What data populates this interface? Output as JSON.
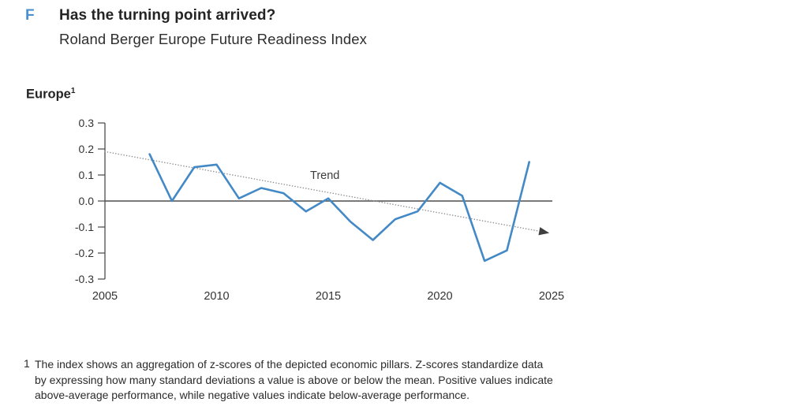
{
  "header": {
    "figure_letter": "F",
    "title": "Has the turning point arrived?",
    "subtitle": "Roland Berger Europe Future Readiness Index"
  },
  "chart": {
    "region_label": "Europe",
    "region_label_sup": "1",
    "trend_label": "Trend",
    "colors": {
      "line": "#4389c6",
      "trend": "#8f8f8f",
      "trend_arrow": "#3f3f3f",
      "axis": "#4d4d4d",
      "figure_letter": "#4a8fce"
    }
  },
  "chart_data": {
    "type": "line",
    "title": "Has the turning point arrived?",
    "subtitle": "Roland Berger Europe Future Readiness Index",
    "series": [
      {
        "name": "Europe",
        "x": [
          2007,
          2008,
          2009,
          2010,
          2011,
          2012,
          2013,
          2014,
          2015,
          2016,
          2017,
          2018,
          2019,
          2020,
          2021,
          2022,
          2023,
          2024
        ],
        "values": [
          0.18,
          0.0,
          0.13,
          0.14,
          0.01,
          0.05,
          0.03,
          -0.04,
          0.01,
          -0.08,
          -0.15,
          -0.07,
          -0.04,
          0.07,
          0.02,
          -0.23,
          -0.19,
          0.15
        ]
      }
    ],
    "trend_line": {
      "label": "Trend",
      "style": "dotted-with-arrowhead",
      "x_start": 2005,
      "y_start": 0.19,
      "x_end": 2024.9,
      "y_end": -0.123
    },
    "x_ticks": [
      "2005",
      "2010",
      "2015",
      "2020",
      "2025"
    ],
    "x_tick_years": [
      2005,
      2010,
      2015,
      2020,
      2025
    ],
    "y_tick_labels": [
      "0.3",
      "0.2",
      "0.1",
      "0.0",
      "-0.1",
      "-0.2",
      "-0.3"
    ],
    "y_tick_values": [
      0.3,
      0.2,
      0.1,
      0.0,
      -0.1,
      -0.2,
      -0.3
    ],
    "xlim": [
      2005,
      2025
    ],
    "ylim": [
      -0.3,
      0.3
    ],
    "grid": false,
    "zero_line": true,
    "legend": "none"
  },
  "footnote": {
    "marker": "1",
    "lines": [
      "The index shows an aggregation of z-scores of the depicted economic pillars. Z-scores standardize data",
      "by expressing how many standard deviations a value is above or below the mean. Positive values indicate",
      "above-average performance, while negative values indicate below-average performance."
    ]
  }
}
